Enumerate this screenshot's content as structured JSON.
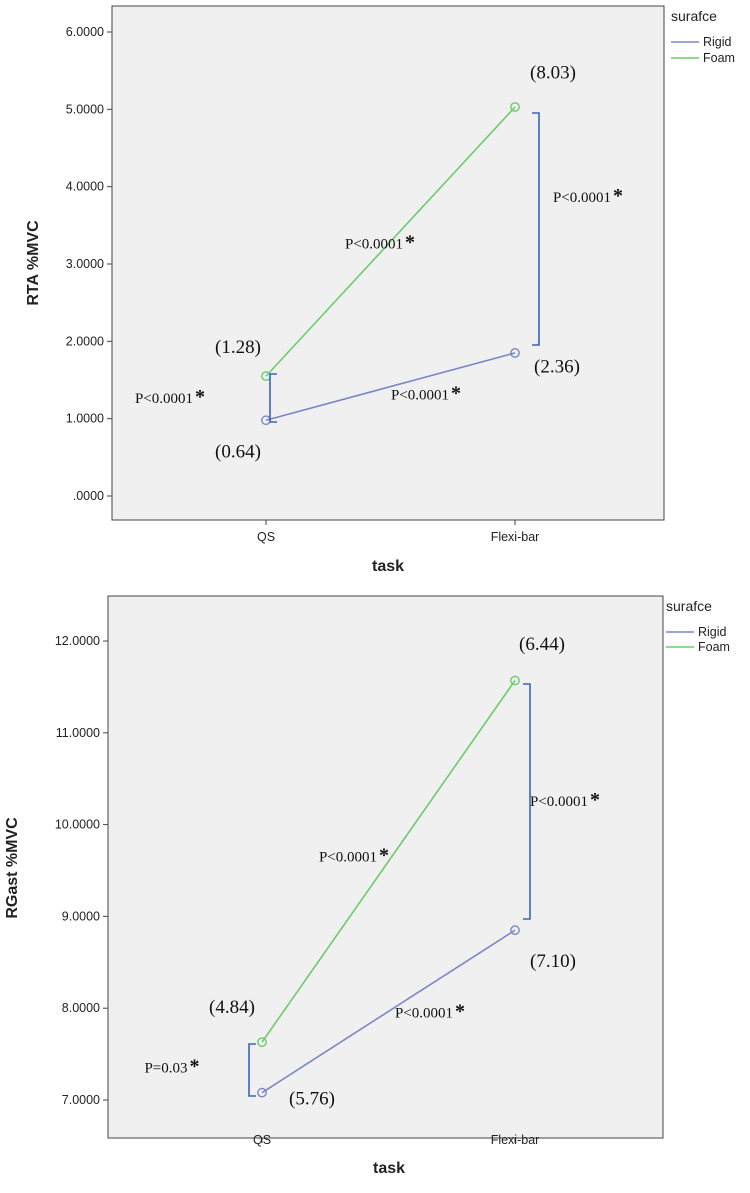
{
  "chart_data": [
    {
      "type": "line",
      "title": "",
      "xlabel": "task",
      "ylabel": "RTA %MVC",
      "categories": [
        "QS",
        "Flexi-bar"
      ],
      "ylim": [
        -0.2,
        6.3
      ],
      "yticks": [
        ".0000",
        "1.0000",
        "2.0000",
        "3.0000",
        "4.0000",
        "5.0000",
        "6.0000"
      ],
      "legend_title": "surafce",
      "legend_position": "right",
      "series": [
        {
          "name": "Rigid",
          "color": "#7b86c8",
          "values": [
            0.98,
            1.85
          ]
        },
        {
          "name": "Foam",
          "color": "#6ccc6c",
          "values": [
            1.55,
            5.03
          ]
        }
      ],
      "annotations": [
        {
          "text": "(1.28)",
          "x": "QS",
          "y": 1.85
        },
        {
          "text": "(0.64)",
          "x": "QS",
          "y": 0.5
        },
        {
          "text": "(8.03)",
          "x": "Flexi-bar",
          "y": 5.4
        },
        {
          "text": "(2.36)",
          "x": "Flexi-bar",
          "y": 1.6
        },
        {
          "text": "P<0.0001",
          "star": "*",
          "x": "QS",
          "y": 1.2
        },
        {
          "text": "P<0.0001",
          "star": "*",
          "x": "mid",
          "y": 1.25
        },
        {
          "text": "P<0.0001",
          "star": "*",
          "x": "mid",
          "y": 3.2
        },
        {
          "text": "P<0.0001",
          "star": "*",
          "x": "Flexi-bar",
          "y": 3.8
        }
      ]
    },
    {
      "type": "line",
      "title": "",
      "xlabel": "task",
      "ylabel": "RGast %MVC",
      "categories": [
        "QS",
        "Flexi-bar"
      ],
      "ylim": [
        6.6,
        12.3
      ],
      "yticks": [
        "7.0000",
        "8.0000",
        "9.0000",
        "10.0000",
        "11.0000",
        "12.0000"
      ],
      "legend_title": "surafce",
      "legend_position": "right",
      "series": [
        {
          "name": "Rigid",
          "color": "#7b86c8",
          "values": [
            7.08,
            8.85
          ]
        },
        {
          "name": "Foam",
          "color": "#6ccc6c",
          "values": [
            7.63,
            11.57
          ]
        }
      ],
      "annotations": [
        {
          "text": "(4.84)",
          "x": "QS",
          "y": 7.95
        },
        {
          "text": "(5.76)",
          "x": "QS",
          "y": 6.95
        },
        {
          "text": "(6.44)",
          "x": "Flexi-bar",
          "y": 11.9
        },
        {
          "text": "(7.10)",
          "x": "Flexi-bar",
          "y": 8.45
        },
        {
          "text": "P=0.03",
          "star": "*",
          "x": "QS",
          "y": 7.3
        },
        {
          "text": "P<0.0001",
          "star": "*",
          "x": "mid",
          "y": 7.9
        },
        {
          "text": "P<0.0001",
          "star": "*",
          "x": "mid",
          "y": 9.6
        },
        {
          "text": "P<0.0001",
          "star": "*",
          "x": "Flexi-bar",
          "y": 10.2
        }
      ]
    }
  ]
}
